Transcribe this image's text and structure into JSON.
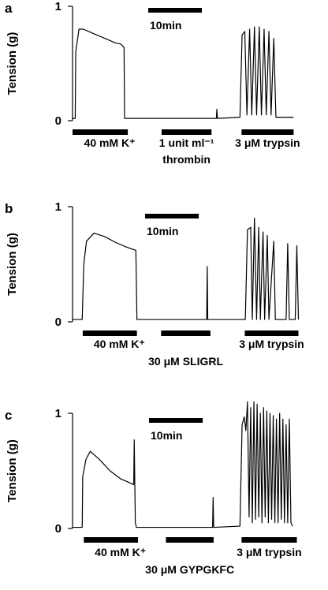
{
  "chart_data": [
    {
      "type": "line",
      "panel": "a",
      "ylabel": "Tension (g)",
      "ylim": [
        0,
        1
      ],
      "yticks": [
        0,
        1
      ],
      "xlim": [
        0,
        43.2
      ],
      "color": "#000000",
      "scale_bar": {
        "label": "10min",
        "value": 10
      },
      "x": [
        0,
        0.5,
        0.6,
        1.2,
        2,
        4,
        6,
        8,
        9,
        9.6,
        9.7,
        26.8,
        26.9,
        27,
        31.2,
        31.6,
        32.1,
        32.5,
        33,
        33.4,
        33.9,
        34.3,
        34.8,
        35.2,
        35.7,
        36.1,
        36.6,
        37,
        37.5,
        37.9,
        41.2
      ],
      "values": [
        0.02,
        0.02,
        0.6,
        0.8,
        0.8,
        0.76,
        0.72,
        0.68,
        0.67,
        0.64,
        0.02,
        0.02,
        0.1,
        0.02,
        0.03,
        0.75,
        0.78,
        0.05,
        0.8,
        0.05,
        0.82,
        0.05,
        0.82,
        0.05,
        0.8,
        0.05,
        0.78,
        0.05,
        0.72,
        0.03,
        0.03
      ],
      "treatments": [
        {
          "label": [
            "40 mM K⁺"
          ],
          "start": 0,
          "end": 10.3
        },
        {
          "label": [
            "1 unit ml⁻¹",
            "thrombin"
          ],
          "start": 16.6,
          "end": 25.9
        },
        {
          "label": [
            "3 μM trypsin"
          ],
          "start": 31.5,
          "end": 41.2
        }
      ]
    },
    {
      "type": "line",
      "panel": "b",
      "ylabel": "Tension (g)",
      "ylim": [
        0,
        1
      ],
      "yticks": [
        0,
        1
      ],
      "xlim": [
        0,
        43.2
      ],
      "color": "#000000",
      "scale_bar": {
        "label": "10min",
        "value": 10
      },
      "x": [
        0,
        1.8,
        2.1,
        2.6,
        4,
        6,
        8,
        10,
        11.8,
        12,
        25,
        25.1,
        25.2,
        32.2,
        32.6,
        33.2,
        33.5,
        33.9,
        34.3,
        34.7,
        35,
        35.5,
        35.8,
        36.3,
        36.6,
        37.5,
        37.8,
        39.8,
        40.1,
        40.4,
        41.5,
        41.8,
        42.1
      ],
      "values": [
        0.02,
        0.02,
        0.5,
        0.7,
        0.77,
        0.74,
        0.69,
        0.65,
        0.62,
        0.02,
        0.02,
        0.48,
        0.02,
        0.02,
        0.8,
        0.82,
        0.02,
        0.9,
        0.02,
        0.82,
        0.02,
        0.78,
        0.02,
        0.75,
        0.02,
        0.7,
        0.02,
        0.02,
        0.68,
        0.02,
        0.02,
        0.66,
        0.02
      ],
      "treatments": [
        {
          "label": [
            "40 mM K⁺"
          ],
          "start": 1.9,
          "end": 12
        },
        {
          "label": [
            "30 μM SLIGRL"
          ],
          "start": 16.5,
          "end": 25.7
        },
        {
          "label": [
            "3 μM trypsin"
          ],
          "start": 32.1,
          "end": 42.1
        }
      ]
    },
    {
      "type": "line",
      "panel": "c",
      "ylabel": "Tension (g)",
      "ylim": [
        0,
        1
      ],
      "yticks": [
        0,
        1
      ],
      "xlim": [
        0,
        43.2
      ],
      "color": "#000000",
      "scale_bar": {
        "label": "10min",
        "value": 10
      },
      "x": [
        0,
        1.8,
        1.9,
        2.5,
        3.3,
        5,
        7,
        9,
        11,
        11.4,
        11.5,
        11.7,
        11.9,
        26.1,
        26.2,
        26.3,
        31.2,
        31.6,
        32,
        32.3,
        32.6,
        32.9,
        33.2,
        33.5,
        33.8,
        34.1,
        34.4,
        34.7,
        35,
        35.3,
        35.6,
        35.9,
        36.2,
        36.5,
        36.8,
        37.1,
        37.4,
        37.7,
        38,
        38.3,
        38.6,
        38.9,
        39.2,
        39.5,
        39.8,
        40.1,
        40.4,
        40.7,
        41
      ],
      "values": [
        0.01,
        0.01,
        0.45,
        0.6,
        0.67,
        0.6,
        0.5,
        0.43,
        0.39,
        0.38,
        0.77,
        0.05,
        0.01,
        0.01,
        0.27,
        0.01,
        0.02,
        0.9,
        0.97,
        0.85,
        1.1,
        0.1,
        1.05,
        0.05,
        1.1,
        0.08,
        1.08,
        0.1,
        1.0,
        0.05,
        1.05,
        0.1,
        1.02,
        0.05,
        1.0,
        0.08,
        0.98,
        0.05,
        0.95,
        0.05,
        1.0,
        0.08,
        0.95,
        0.05,
        0.9,
        0.05,
        0.95,
        0.05,
        0.02
      ],
      "treatments": [
        {
          "label": [
            "40 mM K⁺"
          ],
          "start": 2.1,
          "end": 12.2
        },
        {
          "label": [
            "30 μM GYPGKFC"
          ],
          "start": 17.4,
          "end": 26.3
        },
        {
          "label": [
            "3 μM trypsin"
          ],
          "start": 31.5,
          "end": 41.8
        }
      ]
    }
  ]
}
